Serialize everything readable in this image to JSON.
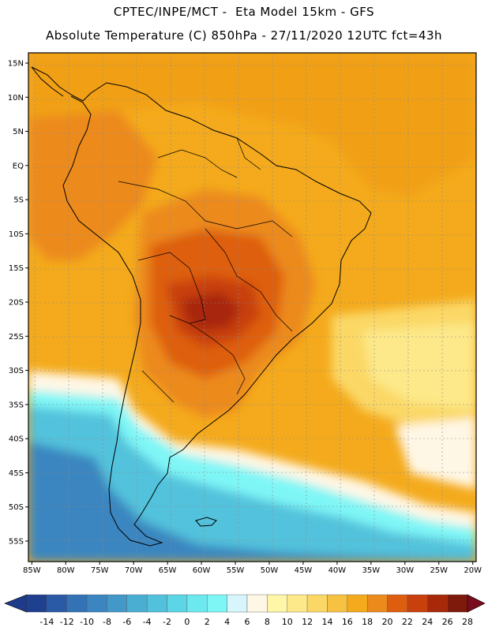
{
  "header": {
    "line1": "CPTEC/INPE/MCT -  Eta Model 15km - GFS",
    "line2": "Absolute Temperature (C) 850hPa - 27/11/2020 12UTC fct=43h"
  },
  "map": {
    "lat_labels": [
      "15N",
      "10N",
      "5N",
      "EQ",
      "5S",
      "10S",
      "15S",
      "20S",
      "25S",
      "30S",
      "35S",
      "40S",
      "45S",
      "50S",
      "55S"
    ],
    "lat_values": [
      15,
      10,
      5,
      0,
      -5,
      -10,
      -15,
      -20,
      -25,
      -30,
      -35,
      -40,
      -45,
      -50,
      -55
    ],
    "lon_labels": [
      "85W",
      "80W",
      "75W",
      "70W",
      "65W",
      "60W",
      "55W",
      "50W",
      "45W",
      "40W",
      "35W",
      "30W",
      "25W",
      "20W"
    ],
    "lon_values": [
      -85,
      -80,
      -75,
      -70,
      -65,
      -60,
      -55,
      -50,
      -45,
      -40,
      -35,
      -30,
      -25,
      -20
    ],
    "lon_range": [
      -85.5,
      -19.5
    ],
    "lat_range": [
      -58,
      16.5
    ],
    "field": "Absolute Temperature (C) 850hPa"
  },
  "colorbar": {
    "labels": [
      "-14",
      "-12",
      "-10",
      "-8",
      "-6",
      "-4",
      "-2",
      "0",
      "2",
      "4",
      "6",
      "8",
      "10",
      "12",
      "14",
      "16",
      "18",
      "20",
      "22",
      "24",
      "26",
      "28"
    ],
    "colors": [
      "#1f3f8f",
      "#2a5aa6",
      "#3373b5",
      "#3b86c0",
      "#4299c8",
      "#4aaed2",
      "#52c2dc",
      "#5cd5e6",
      "#6ce8ef",
      "#7ff6f6",
      "#d6f6fb",
      "#fff7e6",
      "#fff6a8",
      "#fde98a",
      "#fbd866",
      "#f7c142",
      "#f4aa1c",
      "#ec8a1c",
      "#de5e10",
      "#c8400c",
      "#a8280a",
      "#7e1a0c"
    ],
    "under_color": "#1e3a8a",
    "over_color": "#7a0a1e"
  }
}
